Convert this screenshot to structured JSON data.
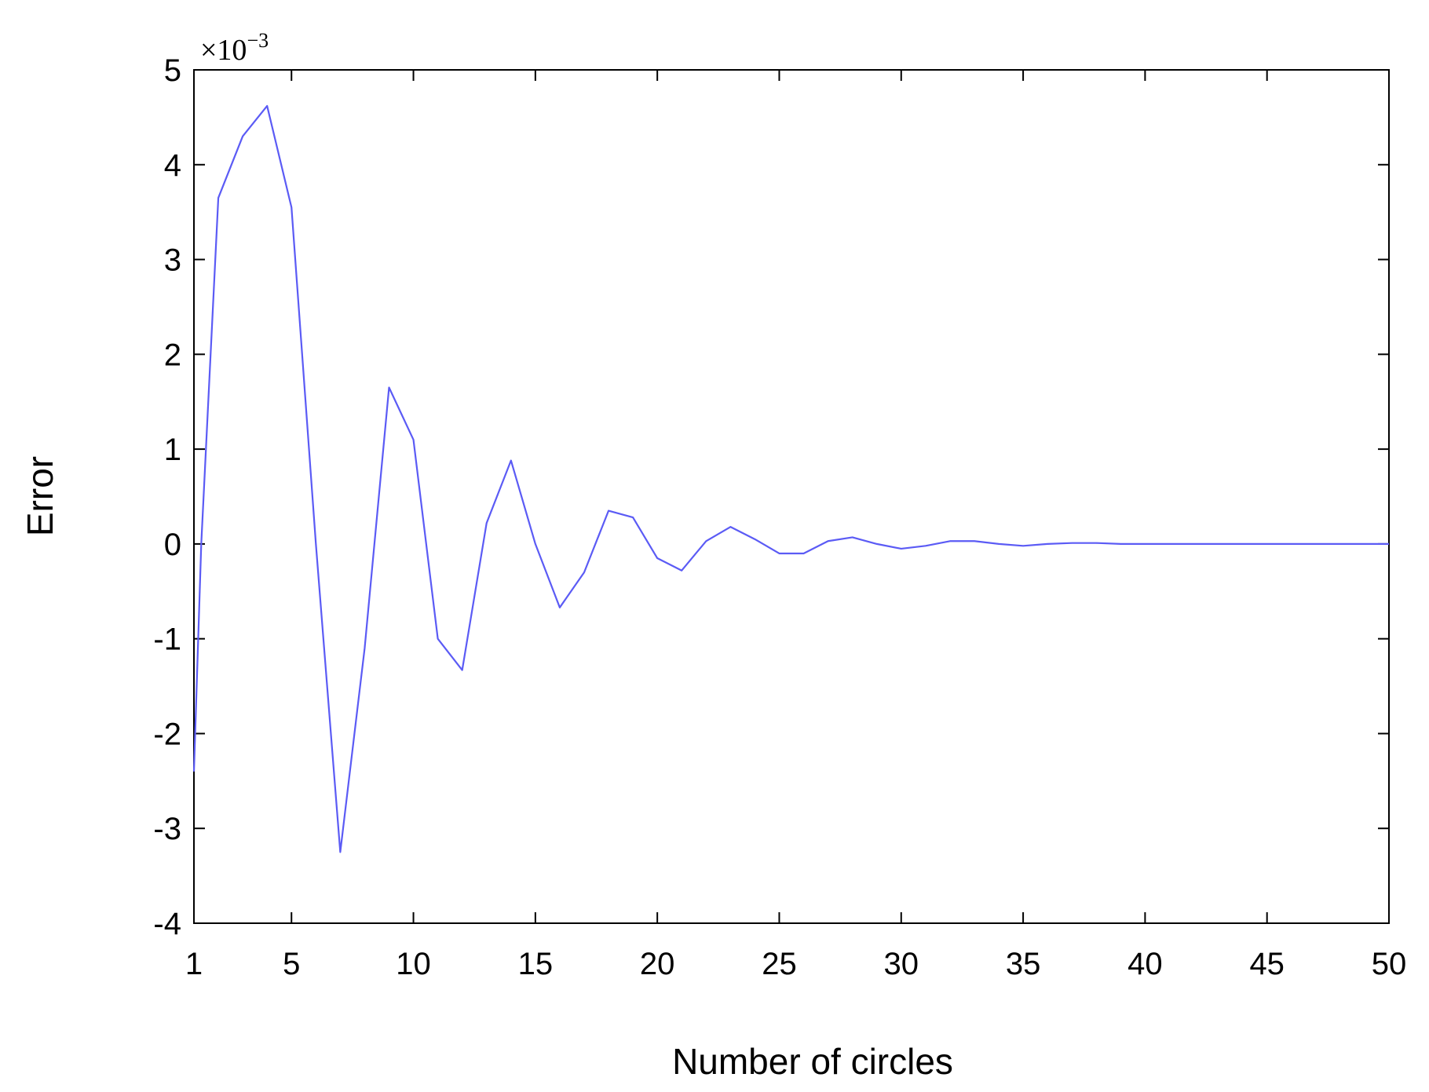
{
  "chart_data": {
    "type": "line",
    "title": "",
    "xlabel": "Number of circles",
    "ylabel": "Error",
    "y_exponent_base": "×10",
    "y_exponent_power": "−3",
    "xlim": [
      1,
      50
    ],
    "ylim": [
      -4,
      5
    ],
    "xticks": [
      1,
      5,
      10,
      15,
      20,
      25,
      30,
      35,
      40,
      45,
      50
    ],
    "yticks": [
      -4,
      -3,
      -2,
      -1,
      0,
      1,
      2,
      3,
      4,
      5
    ],
    "grid": false,
    "line_color": "#5b5bf5",
    "series": [
      {
        "x": [
          1,
          1.3,
          2,
          3,
          4,
          5,
          6,
          7,
          8,
          9,
          10,
          11,
          12,
          13,
          14,
          15,
          16,
          17,
          18,
          19,
          20,
          21,
          22,
          23,
          24,
          25,
          26,
          27,
          28,
          29,
          30,
          31,
          32,
          33,
          34,
          35,
          36,
          37,
          38,
          39,
          40,
          41,
          42,
          43,
          44,
          45,
          46,
          47,
          48,
          49,
          50
        ],
        "y": [
          -2.4,
          0,
          3.65,
          4.3,
          4.62,
          3.55,
          0,
          -3.25,
          -1.1,
          1.65,
          1.1,
          -1.0,
          -1.33,
          0.22,
          0.88,
          0,
          -0.67,
          -0.3,
          0.35,
          0.28,
          -0.15,
          -0.28,
          0.03,
          0.18,
          0.05,
          -0.1,
          -0.1,
          0.03,
          0.07,
          0,
          -0.05,
          -0.02,
          0.03,
          0.03,
          0,
          -0.02,
          0,
          0.01,
          0.01,
          0,
          0,
          0,
          0,
          0,
          0,
          0,
          0,
          0,
          0,
          0,
          0
        ]
      }
    ]
  }
}
